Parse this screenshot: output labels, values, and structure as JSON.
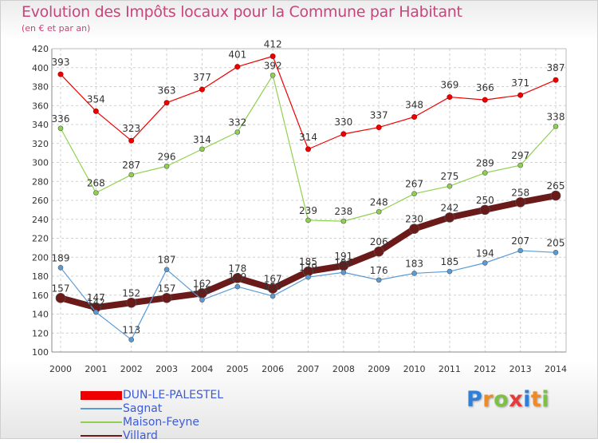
{
  "title": "Evolution des Impôts locaux pour la Commune par Habitant",
  "subtitle": "(en € et par an)",
  "chart_data": {
    "type": "line",
    "title": "Evolution des Impôts locaux pour la Commune par Habitant",
    "subtitle": "(en € et par an)",
    "x": [
      "2000",
      "2001",
      "2002",
      "2003",
      "2004",
      "2005",
      "2006",
      "2007",
      "2008",
      "2009",
      "2010",
      "2011",
      "2012",
      "2013",
      "2014"
    ],
    "yticks": [
      "100",
      "120",
      "140",
      "160",
      "180",
      "200",
      "220",
      "240",
      "260",
      "280",
      "300",
      "320",
      "340",
      "360",
      "380",
      "400",
      "420"
    ],
    "ylim": [
      100,
      420
    ],
    "grid": true,
    "legend_position": "bottom-left",
    "series": [
      {
        "name": "DUN-LE-PALESTEL",
        "color": "#ee0000",
        "values": [
          393,
          354,
          323,
          363,
          377,
          401,
          412,
          314,
          330,
          337,
          348,
          369,
          366,
          371,
          387
        ]
      },
      {
        "name": "Sagnat",
        "color": "#5b9bd5",
        "values": [
          189,
          142,
          113,
          187,
          155,
          169,
          159,
          179,
          184,
          176,
          183,
          185,
          194,
          207,
          205
        ]
      },
      {
        "name": "Maison-Feyne",
        "color": "#8fd14f",
        "values": [
          336,
          268,
          287,
          296,
          314,
          332,
          392,
          239,
          238,
          248,
          267,
          275,
          289,
          297,
          338
        ]
      },
      {
        "name": "Villard",
        "color": "#6b1a1a",
        "values": [
          157,
          147,
          152,
          157,
          162,
          178,
          167,
          185,
          191,
          206,
          230,
          242,
          250,
          258,
          265
        ]
      }
    ]
  },
  "logo": {
    "letters": [
      "P",
      "r",
      "o",
      "x",
      "i",
      "t",
      "i"
    ],
    "colors": [
      "#2f7fd8",
      "#f08a24",
      "#7cc242",
      "#e63b3b",
      "#2f7fd8",
      "#f08a24",
      "#7cc242"
    ]
  }
}
